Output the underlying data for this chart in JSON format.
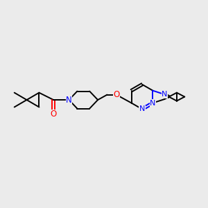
{
  "bg_color": "#EBEBEB",
  "bond_color": "#000000",
  "N_color": "#0000FF",
  "O_color": "#FF0000",
  "lw": 1.4,
  "fs": 7.5,
  "figsize": [
    3.0,
    3.0
  ],
  "dpi": 100,
  "xlim": [
    0,
    10
  ],
  "ylim": [
    0,
    10
  ]
}
